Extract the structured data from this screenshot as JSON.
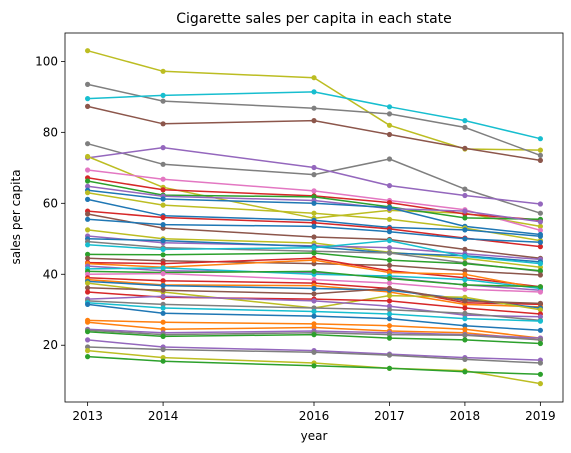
{
  "chart_data": {
    "type": "line",
    "title": "Cigarette sales per capita in each state",
    "xlabel": "year",
    "ylabel": "sales per capita",
    "x": [
      2013,
      2014,
      2016,
      2017,
      2018,
      2019
    ],
    "xlim": [
      2012.7,
      2019.3
    ],
    "ylim": [
      4,
      108
    ],
    "xticks": [
      2013,
      2014,
      2016,
      2017,
      2018,
      2019
    ],
    "yticks": [
      20,
      40,
      60,
      80,
      100
    ],
    "grid": false,
    "legend": "none",
    "series": [
      {
        "color": "#bcbd22",
        "values": [
          103.0,
          97.2,
          95.4,
          82.0,
          75.3,
          75.0
        ]
      },
      {
        "color": "#7f7f7f",
        "values": [
          93.5,
          88.8,
          86.8,
          85.2,
          81.4,
          73.5
        ]
      },
      {
        "color": "#17becf",
        "values": [
          89.5,
          90.4,
          91.4,
          87.2,
          83.3,
          78.2
        ]
      },
      {
        "color": "#8c564b",
        "values": [
          87.3,
          82.4,
          83.3,
          79.4,
          75.5,
          72.1
        ]
      },
      {
        "color": "#7f7f7f",
        "values": [
          76.8,
          71.0,
          68.1,
          72.5,
          64.0,
          57.2
        ]
      },
      {
        "color": "#9467bd",
        "values": [
          72.8,
          75.7,
          70.1,
          65.0,
          62.2,
          59.8
        ]
      },
      {
        "color": "#bcbd22",
        "values": [
          73.2,
          64.5,
          55.8,
          58.0,
          57.2,
          53.5
        ]
      },
      {
        "color": "#e377c2",
        "values": [
          69.4,
          66.8,
          63.5,
          60.8,
          58.2,
          52.4
        ]
      },
      {
        "color": "#d62728",
        "values": [
          67.2,
          63.8,
          62.1,
          60.2,
          57.0,
          55.3
        ]
      },
      {
        "color": "#2ca02c",
        "values": [
          66.3,
          62.3,
          61.8,
          59.0,
          55.9,
          55.5
        ]
      },
      {
        "color": "#9467bd",
        "values": [
          64.8,
          62.0,
          60.8,
          58.5,
          57.8,
          54.8
        ]
      },
      {
        "color": "#1f77b4",
        "values": [
          63.7,
          61.2,
          60.0,
          58.8,
          53.5,
          51.2
        ]
      },
      {
        "color": "#bcbd22",
        "values": [
          63.0,
          59.5,
          57.2,
          55.5,
          53.0,
          49.5
        ]
      },
      {
        "color": "#1f77b4",
        "values": [
          61.1,
          56.5,
          55.2,
          53.2,
          52.5,
          50.7
        ]
      },
      {
        "color": "#d62728",
        "values": [
          57.8,
          56.0,
          54.5,
          52.8,
          50.2,
          47.8
        ]
      },
      {
        "color": "#8c564b",
        "values": [
          57.0,
          53.0,
          50.5,
          49.8,
          47.0,
          44.5
        ]
      },
      {
        "color": "#1f77b4",
        "values": [
          55.5,
          54.0,
          53.5,
          52.0,
          50.0,
          49.0
        ]
      },
      {
        "color": "#bcbd22",
        "values": [
          52.5,
          50.0,
          48.8,
          46.2,
          44.5,
          42.0
        ]
      },
      {
        "color": "#9467bd",
        "values": [
          50.8,
          48.9,
          48.0,
          47.5,
          45.8,
          44.2
        ]
      },
      {
        "color": "#1f77b4",
        "values": [
          50.0,
          49.5,
          47.8,
          46.0,
          45.2,
          43.5
        ]
      },
      {
        "color": "#7f7f7f",
        "values": [
          49.2,
          47.5,
          46.5,
          46.0,
          43.2,
          40.8
        ]
      },
      {
        "color": "#17becf",
        "values": [
          48.3,
          47.0,
          47.5,
          49.5,
          45.0,
          43.0
        ]
      },
      {
        "color": "#2ca02c",
        "values": [
          45.6,
          45.5,
          46.0,
          44.0,
          43.0,
          41.0
        ]
      },
      {
        "color": "#8c564b",
        "values": [
          44.5,
          43.8,
          43.0,
          42.5,
          41.0,
          39.8
        ]
      },
      {
        "color": "#d62728",
        "values": [
          43.3,
          43.0,
          44.5,
          41.0,
          39.0,
          36.5
        ]
      },
      {
        "color": "#ff7f0e",
        "values": [
          43.0,
          42.0,
          44.0,
          40.5,
          40.0,
          36.0
        ]
      },
      {
        "color": "#9467bd",
        "values": [
          42.3,
          41.0,
          40.5,
          39.0,
          37.0,
          35.5
        ]
      },
      {
        "color": "#17becf",
        "values": [
          41.5,
          41.8,
          40.0,
          39.5,
          38.5,
          36.0
        ]
      },
      {
        "color": "#2ca02c",
        "values": [
          40.8,
          40.5,
          40.8,
          38.8,
          37.0,
          36.5
        ]
      },
      {
        "color": "#e377c2",
        "values": [
          40.0,
          40.2,
          38.5,
          37.5,
          35.8,
          35.0
        ]
      },
      {
        "color": "#d62728",
        "values": [
          39.0,
          38.2,
          37.5,
          36.0,
          32.0,
          31.5
        ]
      },
      {
        "color": "#ff7f0e",
        "values": [
          38.5,
          37.0,
          36.8,
          35.0,
          31.5,
          30.8
        ]
      },
      {
        "color": "#1f77b4",
        "values": [
          38.0,
          36.8,
          36.0,
          35.5,
          33.0,
          30.5
        ]
      },
      {
        "color": "#bcbd22",
        "values": [
          37.5,
          35.0,
          30.5,
          34.0,
          33.5,
          30.0
        ]
      },
      {
        "color": "#8c564b",
        "values": [
          36.2,
          35.5,
          34.5,
          36.0,
          32.5,
          31.8
        ]
      },
      {
        "color": "#d62728",
        "values": [
          35.0,
          33.5,
          33.0,
          32.5,
          30.5,
          28.8
        ]
      },
      {
        "color": "#9467bd",
        "values": [
          33.0,
          33.8,
          32.5,
          31.0,
          28.5,
          28.0
        ]
      },
      {
        "color": "#7f7f7f",
        "values": [
          32.5,
          31.5,
          30.5,
          30.0,
          29.0,
          27.0
        ]
      },
      {
        "color": "#17becf",
        "values": [
          32.0,
          30.5,
          29.5,
          28.8,
          27.5,
          26.8
        ]
      },
      {
        "color": "#1f77b4",
        "values": [
          31.5,
          29.0,
          28.2,
          27.5,
          25.5,
          24.2
        ]
      },
      {
        "color": "#ff7f0e",
        "values": [
          27.0,
          26.5,
          26.0,
          25.5,
          24.5,
          22.0
        ]
      },
      {
        "color": "#ff7f0e",
        "values": [
          26.5,
          24.5,
          25.0,
          24.0,
          23.5,
          21.5
        ]
      },
      {
        "color": "#9467bd",
        "values": [
          24.5,
          23.5,
          24.0,
          23.5,
          23.0,
          22.0
        ]
      },
      {
        "color": "#7f7f7f",
        "values": [
          24.2,
          23.0,
          23.5,
          23.0,
          22.8,
          21.5
        ]
      },
      {
        "color": "#2ca02c",
        "values": [
          23.8,
          22.5,
          23.0,
          22.0,
          21.5,
          20.5
        ]
      },
      {
        "color": "#9467bd",
        "values": [
          21.5,
          19.5,
          18.5,
          17.5,
          16.5,
          15.8
        ]
      },
      {
        "color": "#7f7f7f",
        "values": [
          19.5,
          18.8,
          18.0,
          17.2,
          16.0,
          15.0
        ]
      },
      {
        "color": "#bcbd22",
        "values": [
          18.5,
          16.5,
          15.0,
          13.5,
          12.8,
          9.2
        ]
      },
      {
        "color": "#2ca02c",
        "values": [
          16.8,
          15.5,
          14.2,
          13.5,
          12.5,
          11.8
        ]
      }
    ]
  }
}
